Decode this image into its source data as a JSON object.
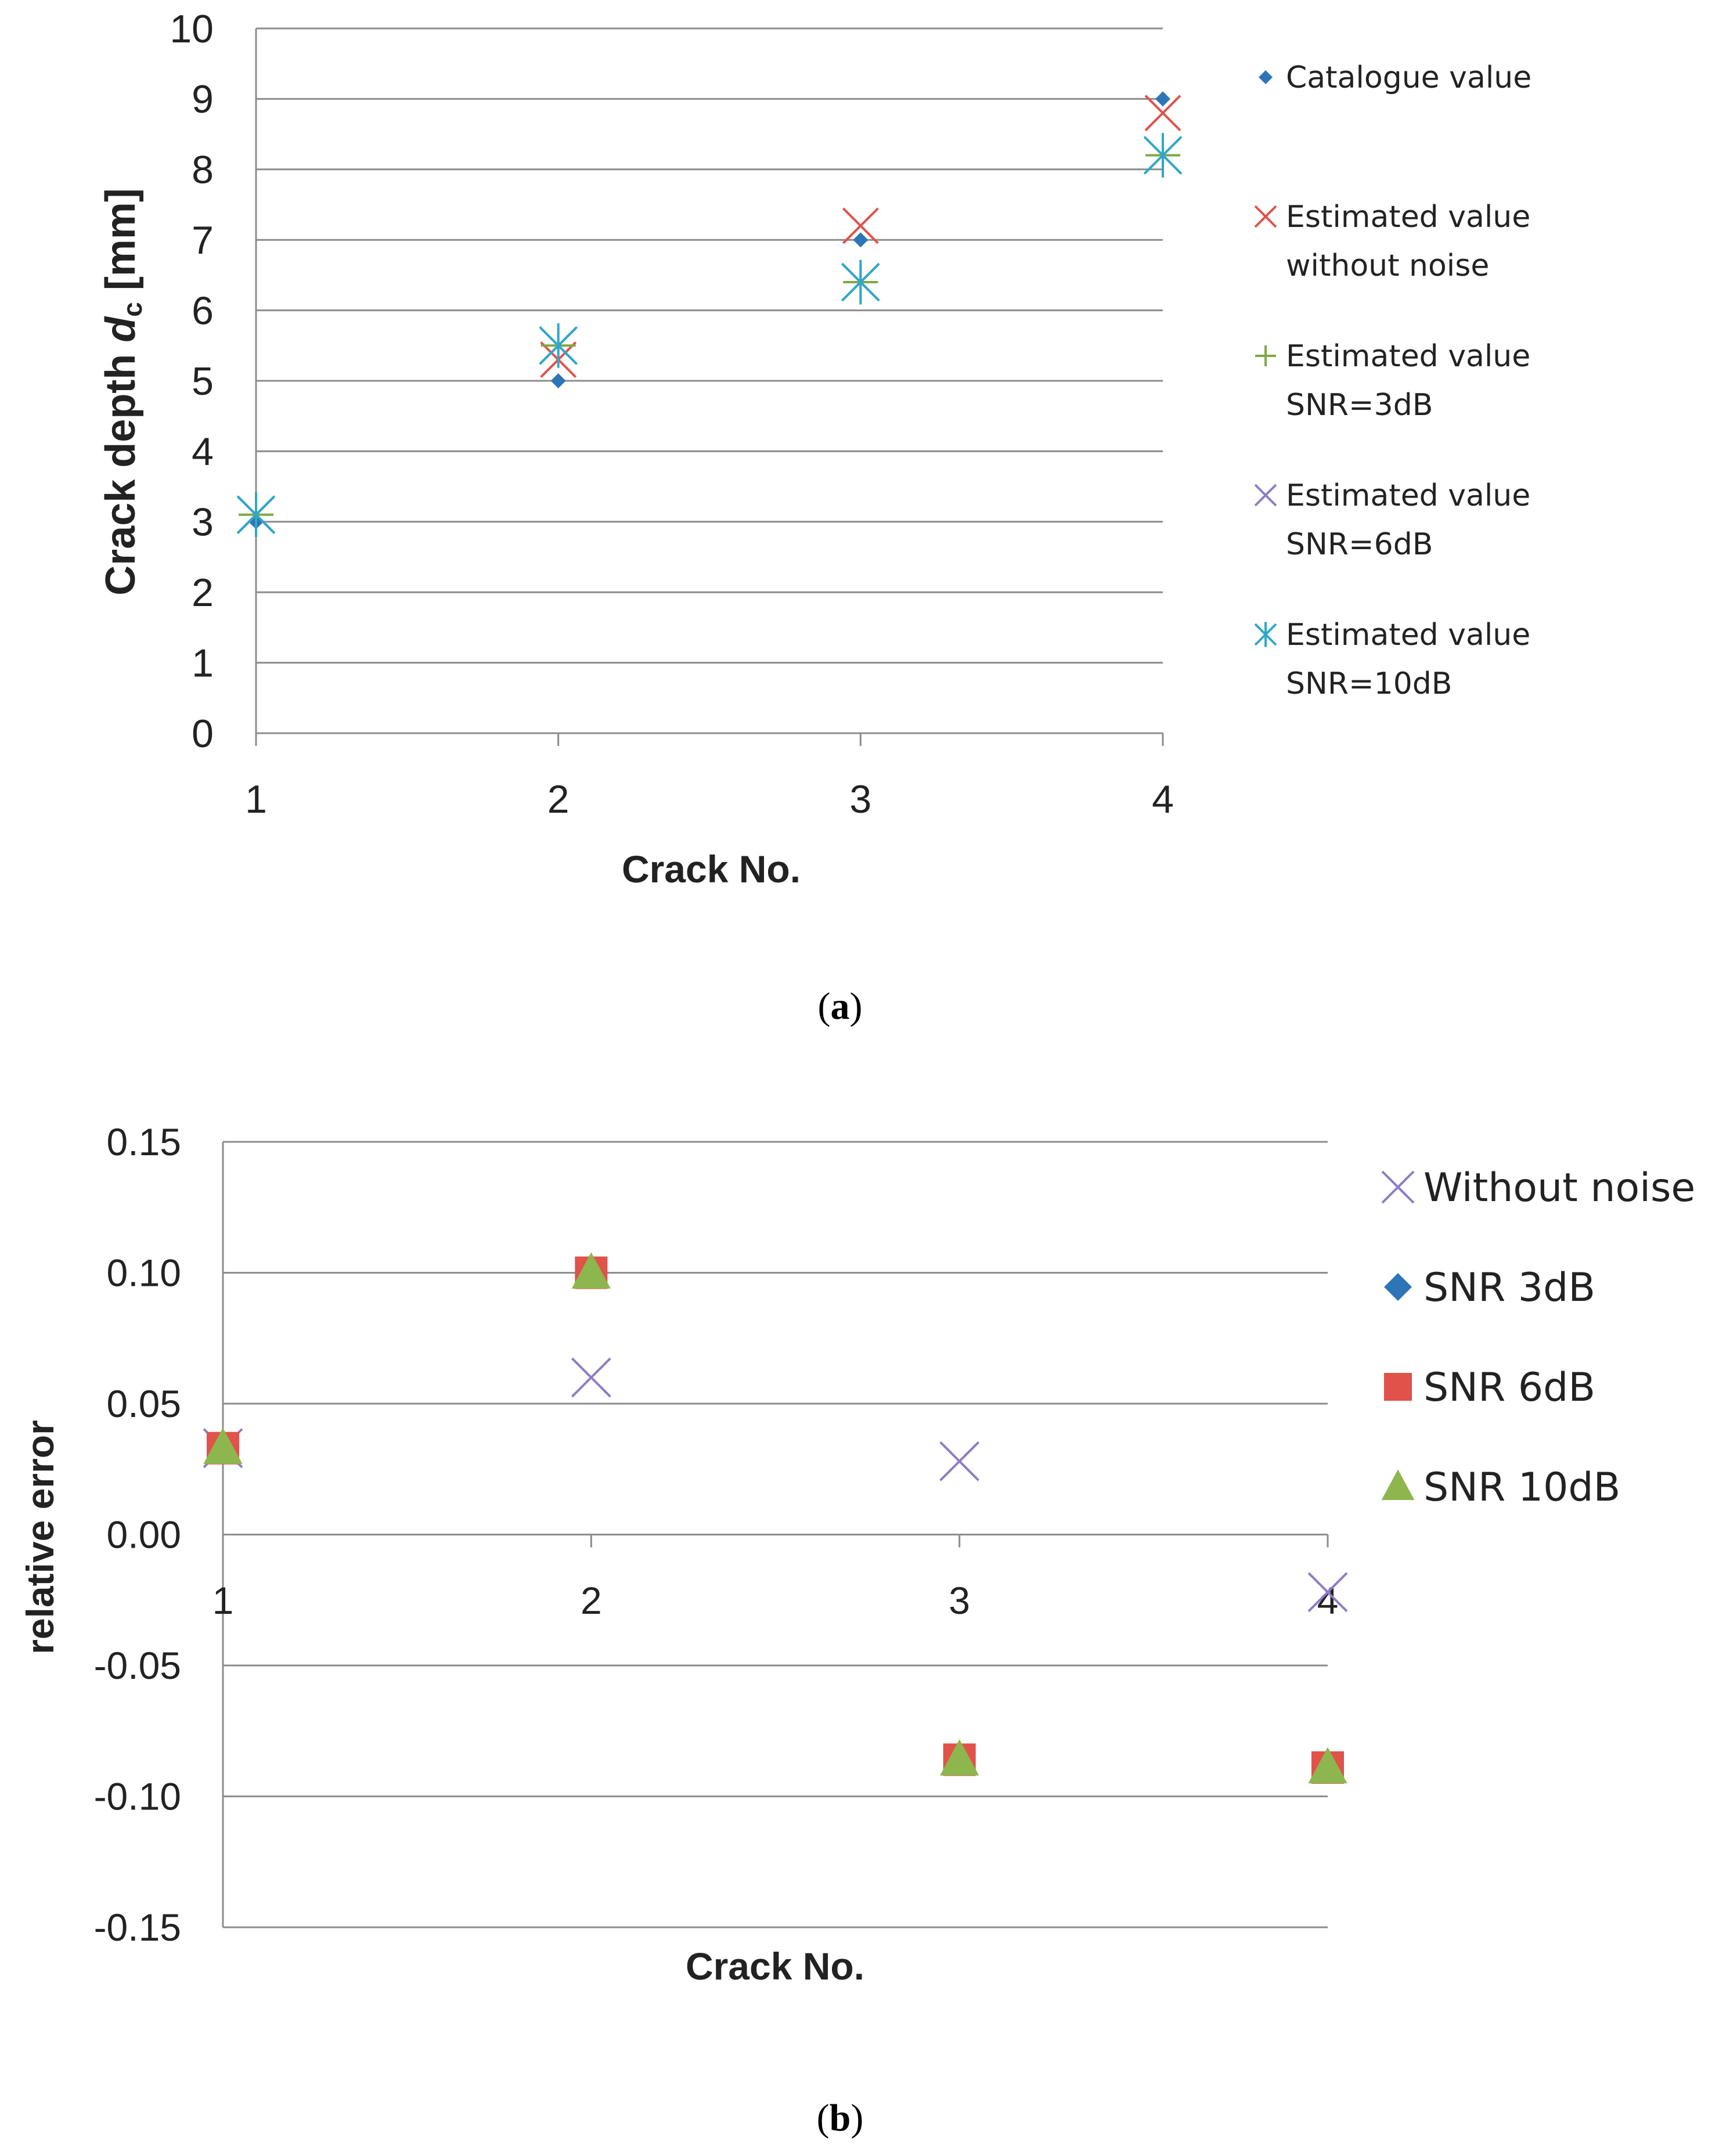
{
  "chart_data": [
    {
      "type": "scatter",
      "panel_label": "a",
      "xlabel": "Crack No.",
      "ylabel_main": "Crack depth ",
      "ylabel_italic": "d",
      "ylabel_sub": "c",
      "ylabel_unit": " [mm]",
      "xlim": [
        1,
        4
      ],
      "ylim": [
        0,
        10
      ],
      "x_ticks": [
        "1",
        "2",
        "3",
        "4"
      ],
      "y_ticks": [
        "0",
        "1",
        "2",
        "3",
        "4",
        "5",
        "6",
        "7",
        "8",
        "9",
        "10"
      ],
      "grid": true,
      "legend_position": "right",
      "series": [
        {
          "name_lines": [
            "Catalogue value"
          ],
          "marker": "diamond",
          "color": "#2E75B6",
          "x": [
            1,
            2,
            3,
            4
          ],
          "y": [
            3.0,
            5.0,
            7.0,
            9.0
          ]
        },
        {
          "name_lines": [
            "Estimated value",
            "without noise"
          ],
          "marker": "x",
          "color": "#E0524A",
          "x": [
            1,
            2,
            3,
            4
          ],
          "y": [
            3.1,
            5.3,
            7.2,
            8.8
          ]
        },
        {
          "name_lines": [
            "Estimated value",
            "SNR=3dB"
          ],
          "marker": "plus",
          "color": "#7FA744",
          "x": [
            1,
            2,
            3,
            4
          ],
          "y": [
            3.1,
            5.5,
            6.4,
            8.2
          ]
        },
        {
          "name_lines": [
            "Estimated value",
            "SNR=6dB"
          ],
          "marker": "x",
          "color": "#8E7CC3",
          "x": [
            1,
            2,
            3,
            4
          ],
          "y": [
            3.1,
            5.5,
            6.4,
            8.2
          ]
        },
        {
          "name_lines": [
            "Estimated value",
            "SNR=10dB"
          ],
          "marker": "asterisk",
          "color": "#2FA8C8",
          "x": [
            1,
            2,
            3,
            4
          ],
          "y": [
            3.1,
            5.5,
            6.4,
            8.2
          ]
        }
      ]
    },
    {
      "type": "scatter",
      "panel_label": "b",
      "xlabel": "Crack No.",
      "ylabel": "relative error",
      "xlim": [
        1,
        4
      ],
      "ylim": [
        -0.15,
        0.15
      ],
      "x_ticks": [
        "1",
        "2",
        "3",
        "4"
      ],
      "y_ticks": [
        "-0.15",
        "-0.10",
        "-0.05",
        "0.00",
        "0.05",
        "0.10",
        "0.15"
      ],
      "grid": true,
      "legend_position": "right",
      "series": [
        {
          "name": "Without noise",
          "marker": "x",
          "color": "#8E7CC3",
          "x": [
            1,
            2,
            3,
            4
          ],
          "y": [
            0.033,
            0.06,
            0.028,
            -0.022
          ]
        },
        {
          "name": "SNR 3dB",
          "marker": "diamond",
          "color": "#2E75B6",
          "x": [
            1,
            2,
            3,
            4
          ],
          "y": [
            0.033,
            0.1,
            -0.086,
            -0.089
          ]
        },
        {
          "name": "SNR 6dB",
          "marker": "square",
          "color": "#E0524A",
          "x": [
            1,
            2,
            3,
            4
          ],
          "y": [
            0.033,
            0.1,
            -0.086,
            -0.089
          ]
        },
        {
          "name": "SNR 10dB",
          "marker": "triangle",
          "color": "#8DB64E",
          "x": [
            1,
            2,
            3,
            4
          ],
          "y": [
            0.033,
            0.1,
            -0.086,
            -0.089
          ]
        }
      ]
    }
  ]
}
